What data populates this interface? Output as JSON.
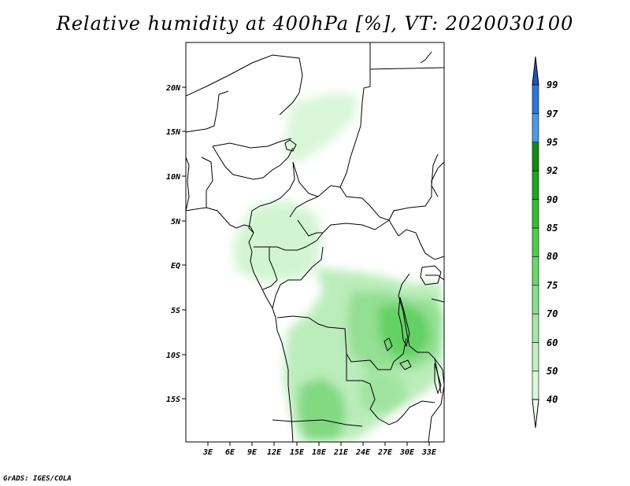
{
  "title": "Relative humidity at 400hPa [%], VT: 2020030100",
  "footer": "GrADS: IGES/COLA",
  "lat_labels": [
    "20N",
    "15N",
    "10N",
    "5N",
    "EQ",
    "5S",
    "10S",
    "15S"
  ],
  "lon_labels": [
    "3E",
    "6E",
    "9E",
    "12E",
    "15E",
    "18E",
    "21E",
    "24E",
    "27E",
    "30E",
    "33E"
  ],
  "colorbar": {
    "levels": [
      "40",
      "50",
      "60",
      "70",
      "75",
      "80",
      "85",
      "90",
      "92",
      "95",
      "97",
      "99"
    ],
    "colors": [
      "#f0fff0",
      "#dcf8dc",
      "#c2f0c2",
      "#a6e8a6",
      "#88e088",
      "#6ad86a",
      "#4cce4c",
      "#30c030",
      "#1ca81c",
      "#128c12",
      "#4a9ae8",
      "#2a78d8",
      "#1c56c0"
    ]
  },
  "map": {
    "lon_range": [
      0,
      35
    ],
    "lat_range": [
      -20,
      25
    ],
    "field": "Relative humidity",
    "level": "400hPa",
    "units": "%"
  }
}
